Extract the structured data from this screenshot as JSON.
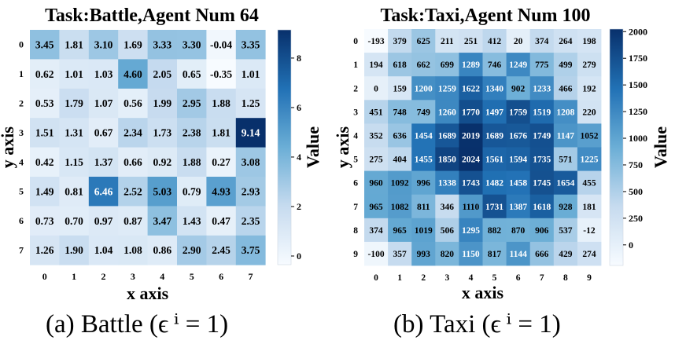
{
  "chart_data": [
    {
      "type": "heatmap",
      "title": "Task:Battle,Agent Num 64",
      "xlabel": "x axis",
      "ylabel": "y axis",
      "x": [
        0,
        1,
        2,
        3,
        4,
        5,
        6,
        7
      ],
      "y": [
        0,
        1,
        2,
        3,
        4,
        5,
        6,
        7
      ],
      "values": [
        [
          3.45,
          1.81,
          3.1,
          1.69,
          3.33,
          3.3,
          -0.04,
          3.35
        ],
        [
          0.62,
          1.01,
          1.03,
          4.6,
          2.05,
          0.65,
          -0.35,
          1.01
        ],
        [
          0.53,
          1.79,
          1.07,
          0.56,
          1.99,
          2.95,
          1.88,
          1.25
        ],
        [
          1.51,
          1.31,
          0.67,
          2.34,
          1.73,
          2.38,
          1.81,
          9.14
        ],
        [
          0.42,
          1.15,
          1.37,
          0.66,
          0.92,
          1.88,
          0.27,
          3.08
        ],
        [
          1.49,
          0.81,
          6.46,
          2.52,
          5.03,
          0.79,
          4.93,
          2.93
        ],
        [
          0.73,
          0.7,
          0.97,
          0.87,
          3.47,
          1.43,
          0.47,
          2.35
        ],
        [
          1.26,
          1.9,
          1.04,
          1.08,
          0.86,
          2.9,
          2.45,
          3.75
        ]
      ],
      "decimals": 2,
      "colorbar": {
        "label": "Value",
        "ticks": [
          0,
          2,
          4,
          6,
          8
        ],
        "vmin": -0.35,
        "vmax": 9.14
      },
      "colormap": [
        "#f7fbff",
        "#c6dbef",
        "#6baed6",
        "#2171b5",
        "#08306b"
      ],
      "caption": "(a) Battle (ϵ ⁱ = 1)"
    },
    {
      "type": "heatmap",
      "title": "Task:Taxi,Agent Num 100",
      "xlabel": "x axis",
      "ylabel": "y axis",
      "x": [
        0,
        1,
        2,
        3,
        4,
        5,
        6,
        7,
        8,
        9
      ],
      "y": [
        0,
        1,
        2,
        3,
        4,
        5,
        6,
        7,
        8,
        9
      ],
      "values": [
        [
          -193,
          379,
          625,
          211,
          251,
          412,
          20,
          374,
          264,
          198
        ],
        [
          194,
          618,
          662,
          699,
          1289,
          746,
          1249,
          775,
          499,
          279
        ],
        [
          0,
          159,
          1200,
          1259,
          1622,
          1340,
          902,
          1233,
          466,
          192
        ],
        [
          451,
          748,
          749,
          1260,
          1770,
          1497,
          1759,
          1519,
          1208,
          220
        ],
        [
          352,
          636,
          1454,
          1689,
          2019,
          1689,
          1676,
          1749,
          1147,
          1052
        ],
        [
          275,
          404,
          1455,
          1850,
          2024,
          1561,
          1594,
          1735,
          571,
          1225
        ],
        [
          960,
          1092,
          996,
          1338,
          1743,
          1482,
          1458,
          1745,
          1654,
          455
        ],
        [
          965,
          1082,
          811,
          346,
          1110,
          1731,
          1387,
          1618,
          928,
          181
        ],
        [
          374,
          965,
          1019,
          506,
          1295,
          882,
          870,
          906,
          537,
          -12
        ],
        [
          -100,
          357,
          993,
          820,
          1150,
          817,
          1144,
          666,
          429,
          274
        ]
      ],
      "decimals": 0,
      "colorbar": {
        "label": "Value",
        "ticks": [
          0,
          250,
          500,
          750,
          1000,
          1250,
          1500,
          1750,
          2000
        ],
        "vmin": -193,
        "vmax": 2024
      },
      "colormap": [
        "#f7fbff",
        "#c6dbef",
        "#6baed6",
        "#2171b5",
        "#08306b"
      ],
      "caption": "(b) Taxi (ϵ ⁱ = 1)"
    }
  ]
}
